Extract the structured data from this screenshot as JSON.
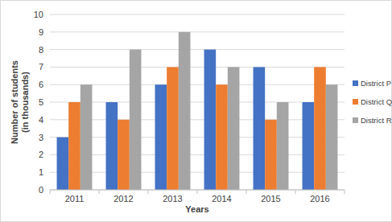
{
  "chart_data": {
    "type": "bar",
    "x_label": "Years",
    "y_label": "Number of students\n(in thousands)",
    "categories": [
      "2011",
      "2012",
      "2013",
      "2014",
      "2015",
      "2016"
    ],
    "series": [
      {
        "name": "District P",
        "color": "#4472c4",
        "values": [
          3,
          5,
          6,
          8,
          7,
          5
        ]
      },
      {
        "name": "District Q",
        "color": "#ed7d31",
        "values": [
          5,
          4,
          7,
          6,
          4,
          7
        ]
      },
      {
        "name": "District R",
        "color": "#a5a5a5",
        "values": [
          6,
          8,
          9,
          7,
          5,
          6
        ]
      }
    ],
    "ylim": [
      0,
      10
    ],
    "yticks": [
      0,
      1,
      2,
      3,
      4,
      5,
      6,
      7,
      8,
      9,
      10
    ],
    "grid": true,
    "legend": "right"
  }
}
